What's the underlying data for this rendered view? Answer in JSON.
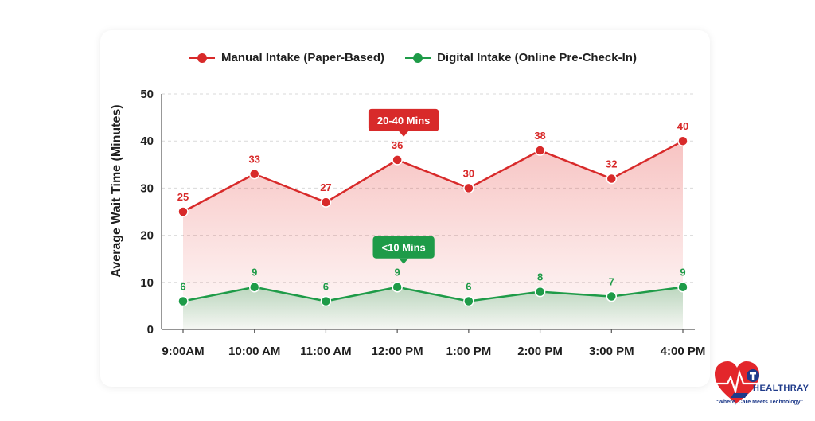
{
  "chart_data": {
    "type": "line",
    "categories": [
      "9:00AM",
      "10:00 AM",
      "11:00 AM",
      "12:00 PM",
      "1:00 PM",
      "2:00 PM",
      "3:00 PM",
      "4:00 PM"
    ],
    "series": [
      {
        "name": "Manual Intake (Paper-Based)",
        "values": [
          25,
          33,
          27,
          36,
          30,
          38,
          32,
          40
        ],
        "labels": [
          "25",
          "33",
          "27",
          "36",
          "30",
          "38",
          "32",
          "40"
        ],
        "color": "#d82a2a"
      },
      {
        "name": "Digital Intake (Online Pre-Check-In)",
        "values": [
          6,
          9,
          6,
          9,
          6,
          8,
          7,
          9
        ],
        "labels": [
          "6",
          "9",
          "6",
          "9",
          "6",
          "8",
          "7",
          "9"
        ],
        "color": "#1e9b48"
      }
    ],
    "ylabel": "Average Wait Time (Minutes)",
    "xlabel": "",
    "ylim": [
      0,
      50
    ],
    "yticks": [
      "0",
      "10",
      "20",
      "30",
      "40",
      "50"
    ],
    "grid": true,
    "legend": "top",
    "annotations": [
      {
        "text": "20-40 Mins",
        "category": "12:00 PM",
        "value": 36,
        "color": "#d82a2a"
      },
      {
        "text": "<10 Mins",
        "category": "12:00 PM",
        "value": 9,
        "color": "#1e9b48"
      }
    ]
  },
  "logo": {
    "name": "HEALTHRAY",
    "tagline": "\"Where, Care Meets Technology\""
  }
}
